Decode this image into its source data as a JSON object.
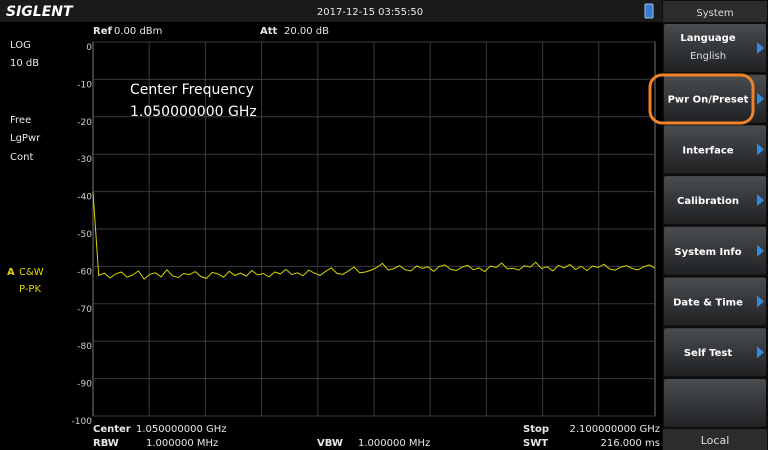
{
  "header": {
    "brand": "SIGLENT",
    "datetime": "2017-12-15  03:55:50"
  },
  "left_panel": {
    "scale_type": "LOG",
    "scale_div": "10 dB",
    "trigger": "Free",
    "average": "LgPwr",
    "sweep": "Cont",
    "trace_label": "A",
    "trace_mode": "C&W",
    "detector": "P-PK"
  },
  "chart_data": {
    "type": "line",
    "ref_label": "Ref",
    "ref_value": "0.00 dBm",
    "att_label": "Att",
    "att_value": "20.00 dB",
    "annotation": [
      "Center Frequency",
      "1.050000000 GHz"
    ],
    "ylim": [
      -100,
      0
    ],
    "yticks": [
      0,
      -10,
      -20,
      -30,
      -40,
      -50,
      -60,
      -70,
      -80,
      -90,
      -100
    ],
    "grid": true,
    "color": "#d8d400",
    "values": [
      -40,
      -62.4,
      -61.8,
      -63.1,
      -62.0,
      -61.5,
      -62.9,
      -62.3,
      -61.2,
      -63.4,
      -62.1,
      -61.7,
      -62.8,
      -60.9,
      -62.5,
      -63.0,
      -61.9,
      -62.2,
      -61.4,
      -62.7,
      -63.2,
      -61.6,
      -62.0,
      -62.9,
      -61.3,
      -62.4,
      -61.8,
      -62.6,
      -61.1,
      -62.3,
      -61.9,
      -62.8,
      -61.5,
      -62.0,
      -60.8,
      -62.2,
      -61.7,
      -62.5,
      -61.0,
      -61.8,
      -62.4,
      -61.3,
      -60.4,
      -61.9,
      -62.1,
      -61.2,
      -60.2,
      -61.7,
      -61.5,
      -61.0,
      -60.3,
      -59.2,
      -61.0,
      -60.6,
      -59.8,
      -60.9,
      -61.2,
      -59.9,
      -60.5,
      -60.1,
      -61.3,
      -60.0,
      -59.6,
      -60.8,
      -61.1,
      -60.2,
      -59.7,
      -60.9,
      -60.4,
      -61.4,
      -59.9,
      -60.3,
      -59.1,
      -60.7,
      -60.5,
      -61.0,
      -59.8,
      -60.2,
      -58.9,
      -60.6,
      -60.1,
      -61.2,
      -59.7,
      -60.4,
      -59.5,
      -60.8,
      -60.0,
      -61.1,
      -59.9,
      -60.3,
      -59.4,
      -60.7,
      -61.0,
      -60.2,
      -59.8,
      -60.6,
      -60.9,
      -60.1,
      -59.6,
      -60.4
    ]
  },
  "footer": {
    "center_label": "Center",
    "center_value": "1.050000000 GHz",
    "rbw_label": "RBW",
    "rbw_value": "1.000000 MHz",
    "vbw_label": "VBW",
    "vbw_value": "1.000000 MHz",
    "stop_label": "Stop",
    "stop_value": "2.100000000 GHz",
    "swt_label": "SWT",
    "swt_value": "216.000 ms"
  },
  "menu": {
    "title": "System",
    "items": [
      {
        "label": "Language",
        "value": "English"
      },
      {
        "label": "Pwr On/Preset"
      },
      {
        "label": "Interface"
      },
      {
        "label": "Calibration"
      },
      {
        "label": "System Info"
      },
      {
        "label": "Date & Time"
      },
      {
        "label": "Self Test"
      }
    ],
    "footer": "Local"
  }
}
